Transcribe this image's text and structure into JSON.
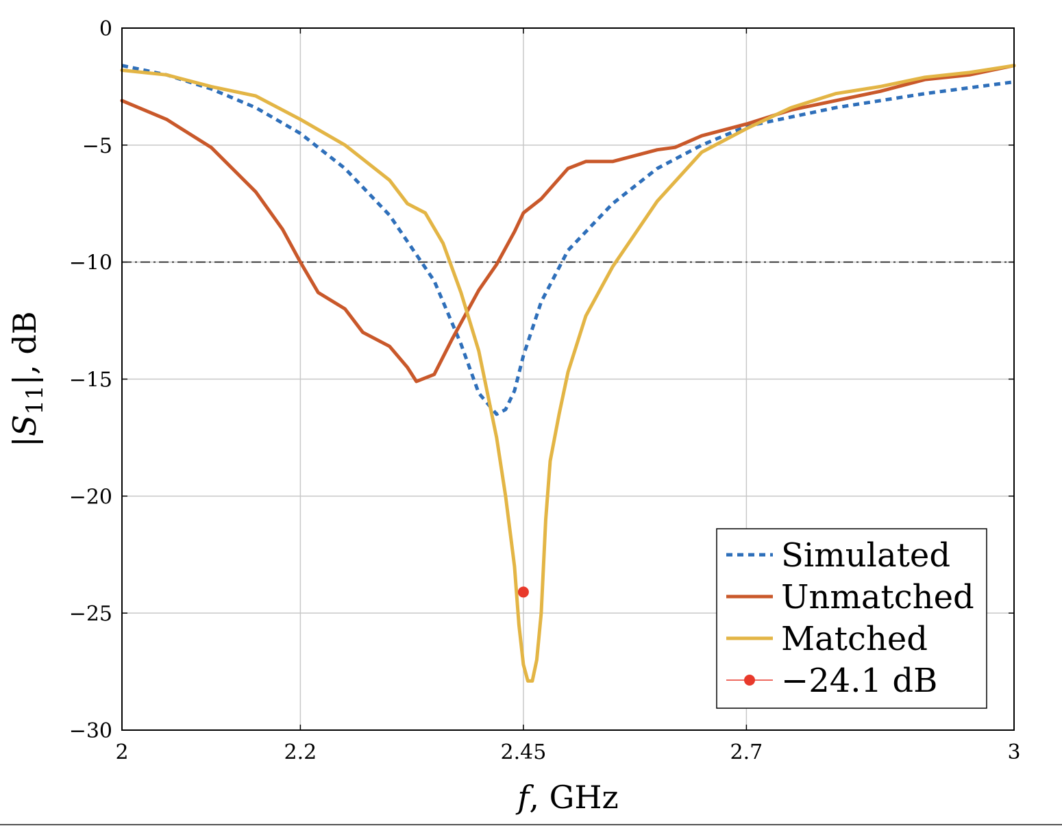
{
  "chart_data": {
    "type": "line",
    "xlabel": "f, GHz",
    "ylabel": "|S11|, dB",
    "xlim": [
      2,
      3
    ],
    "ylim": [
      -30,
      0
    ],
    "xticks": [
      2,
      2.2,
      2.45,
      2.7,
      3
    ],
    "xtick_labels": [
      "2",
      "2.2",
      "2.45",
      "2.7",
      "3"
    ],
    "yticks": [
      0,
      -5,
      -10,
      -15,
      -20,
      -25,
      -30
    ],
    "ytick_labels": [
      "0",
      "−5",
      "−10",
      "−15",
      "−20",
      "−25",
      "−30"
    ],
    "grid": true,
    "legend_position": "bottom-right",
    "reference_line": {
      "y": -10,
      "style": "dash-dot",
      "color": "#000000"
    },
    "series": [
      {
        "name": "Simulated",
        "style": "dotted",
        "color": "#2e6fba",
        "x": [
          2.0,
          2.05,
          2.1,
          2.15,
          2.2,
          2.25,
          2.3,
          2.35,
          2.38,
          2.4,
          2.42,
          2.43,
          2.44,
          2.45,
          2.47,
          2.5,
          2.55,
          2.6,
          2.65,
          2.7,
          2.8,
          2.9,
          3.0
        ],
        "y": [
          -1.6,
          -2.0,
          -2.6,
          -3.4,
          -4.5,
          -6.0,
          -8.0,
          -10.8,
          -13.5,
          -15.6,
          -16.5,
          -16.3,
          -15.5,
          -14.0,
          -11.7,
          -9.5,
          -7.5,
          -6.0,
          -5.0,
          -4.2,
          -3.4,
          -2.8,
          -2.3
        ]
      },
      {
        "name": "Unmatched",
        "style": "solid",
        "color": "#c9582a",
        "x": [
          2.0,
          2.05,
          2.1,
          2.15,
          2.18,
          2.2,
          2.22,
          2.25,
          2.27,
          2.3,
          2.32,
          2.33,
          2.35,
          2.37,
          2.4,
          2.42,
          2.44,
          2.45,
          2.47,
          2.5,
          2.52,
          2.55,
          2.6,
          2.62,
          2.65,
          2.7,
          2.75,
          2.8,
          2.85,
          2.9,
          2.95,
          3.0
        ],
        "y": [
          -3.1,
          -3.9,
          -5.1,
          -7.0,
          -8.6,
          -10.0,
          -11.3,
          -12.0,
          -13.0,
          -13.6,
          -14.5,
          -15.1,
          -14.8,
          -13.3,
          -11.2,
          -10.1,
          -8.7,
          -7.9,
          -7.3,
          -6.0,
          -5.7,
          -5.7,
          -5.2,
          -5.1,
          -4.6,
          -4.1,
          -3.5,
          -3.1,
          -2.7,
          -2.2,
          -2.0,
          -1.6
        ]
      },
      {
        "name": "Matched",
        "style": "solid",
        "color": "#e3b545",
        "x": [
          2.0,
          2.05,
          2.1,
          2.15,
          2.2,
          2.25,
          2.3,
          2.32,
          2.34,
          2.36,
          2.38,
          2.4,
          2.42,
          2.43,
          2.44,
          2.445,
          2.45,
          2.455,
          2.46,
          2.465,
          2.47,
          2.475,
          2.48,
          2.49,
          2.5,
          2.52,
          2.55,
          2.6,
          2.65,
          2.7,
          2.75,
          2.8,
          2.85,
          2.9,
          2.95,
          3.0
        ],
        "y": [
          -1.8,
          -2.0,
          -2.5,
          -2.9,
          -3.9,
          -5.0,
          -6.5,
          -7.5,
          -7.9,
          -9.2,
          -11.3,
          -13.8,
          -17.5,
          -20.0,
          -23.0,
          -25.5,
          -27.2,
          -27.9,
          -27.9,
          -27.0,
          -25.0,
          -21.0,
          -18.5,
          -16.5,
          -14.7,
          -12.3,
          -10.2,
          -7.4,
          -5.3,
          -4.3,
          -3.4,
          -2.8,
          -2.5,
          -2.1,
          -1.9,
          -1.6
        ]
      }
    ],
    "marker": {
      "label": "−24.1 dB",
      "x": 2.45,
      "y": -24.1,
      "color": "#e8392b"
    }
  },
  "legend": {
    "items": [
      {
        "label": "Simulated",
        "color": "#2e6fba",
        "style": "dotted"
      },
      {
        "label": "Unmatched",
        "color": "#c9582a",
        "style": "solid"
      },
      {
        "label": "Matched",
        "color": "#e3b545",
        "style": "solid"
      },
      {
        "label": "−24.1 dB",
        "color": "#e8392b",
        "style": "marker"
      }
    ]
  }
}
